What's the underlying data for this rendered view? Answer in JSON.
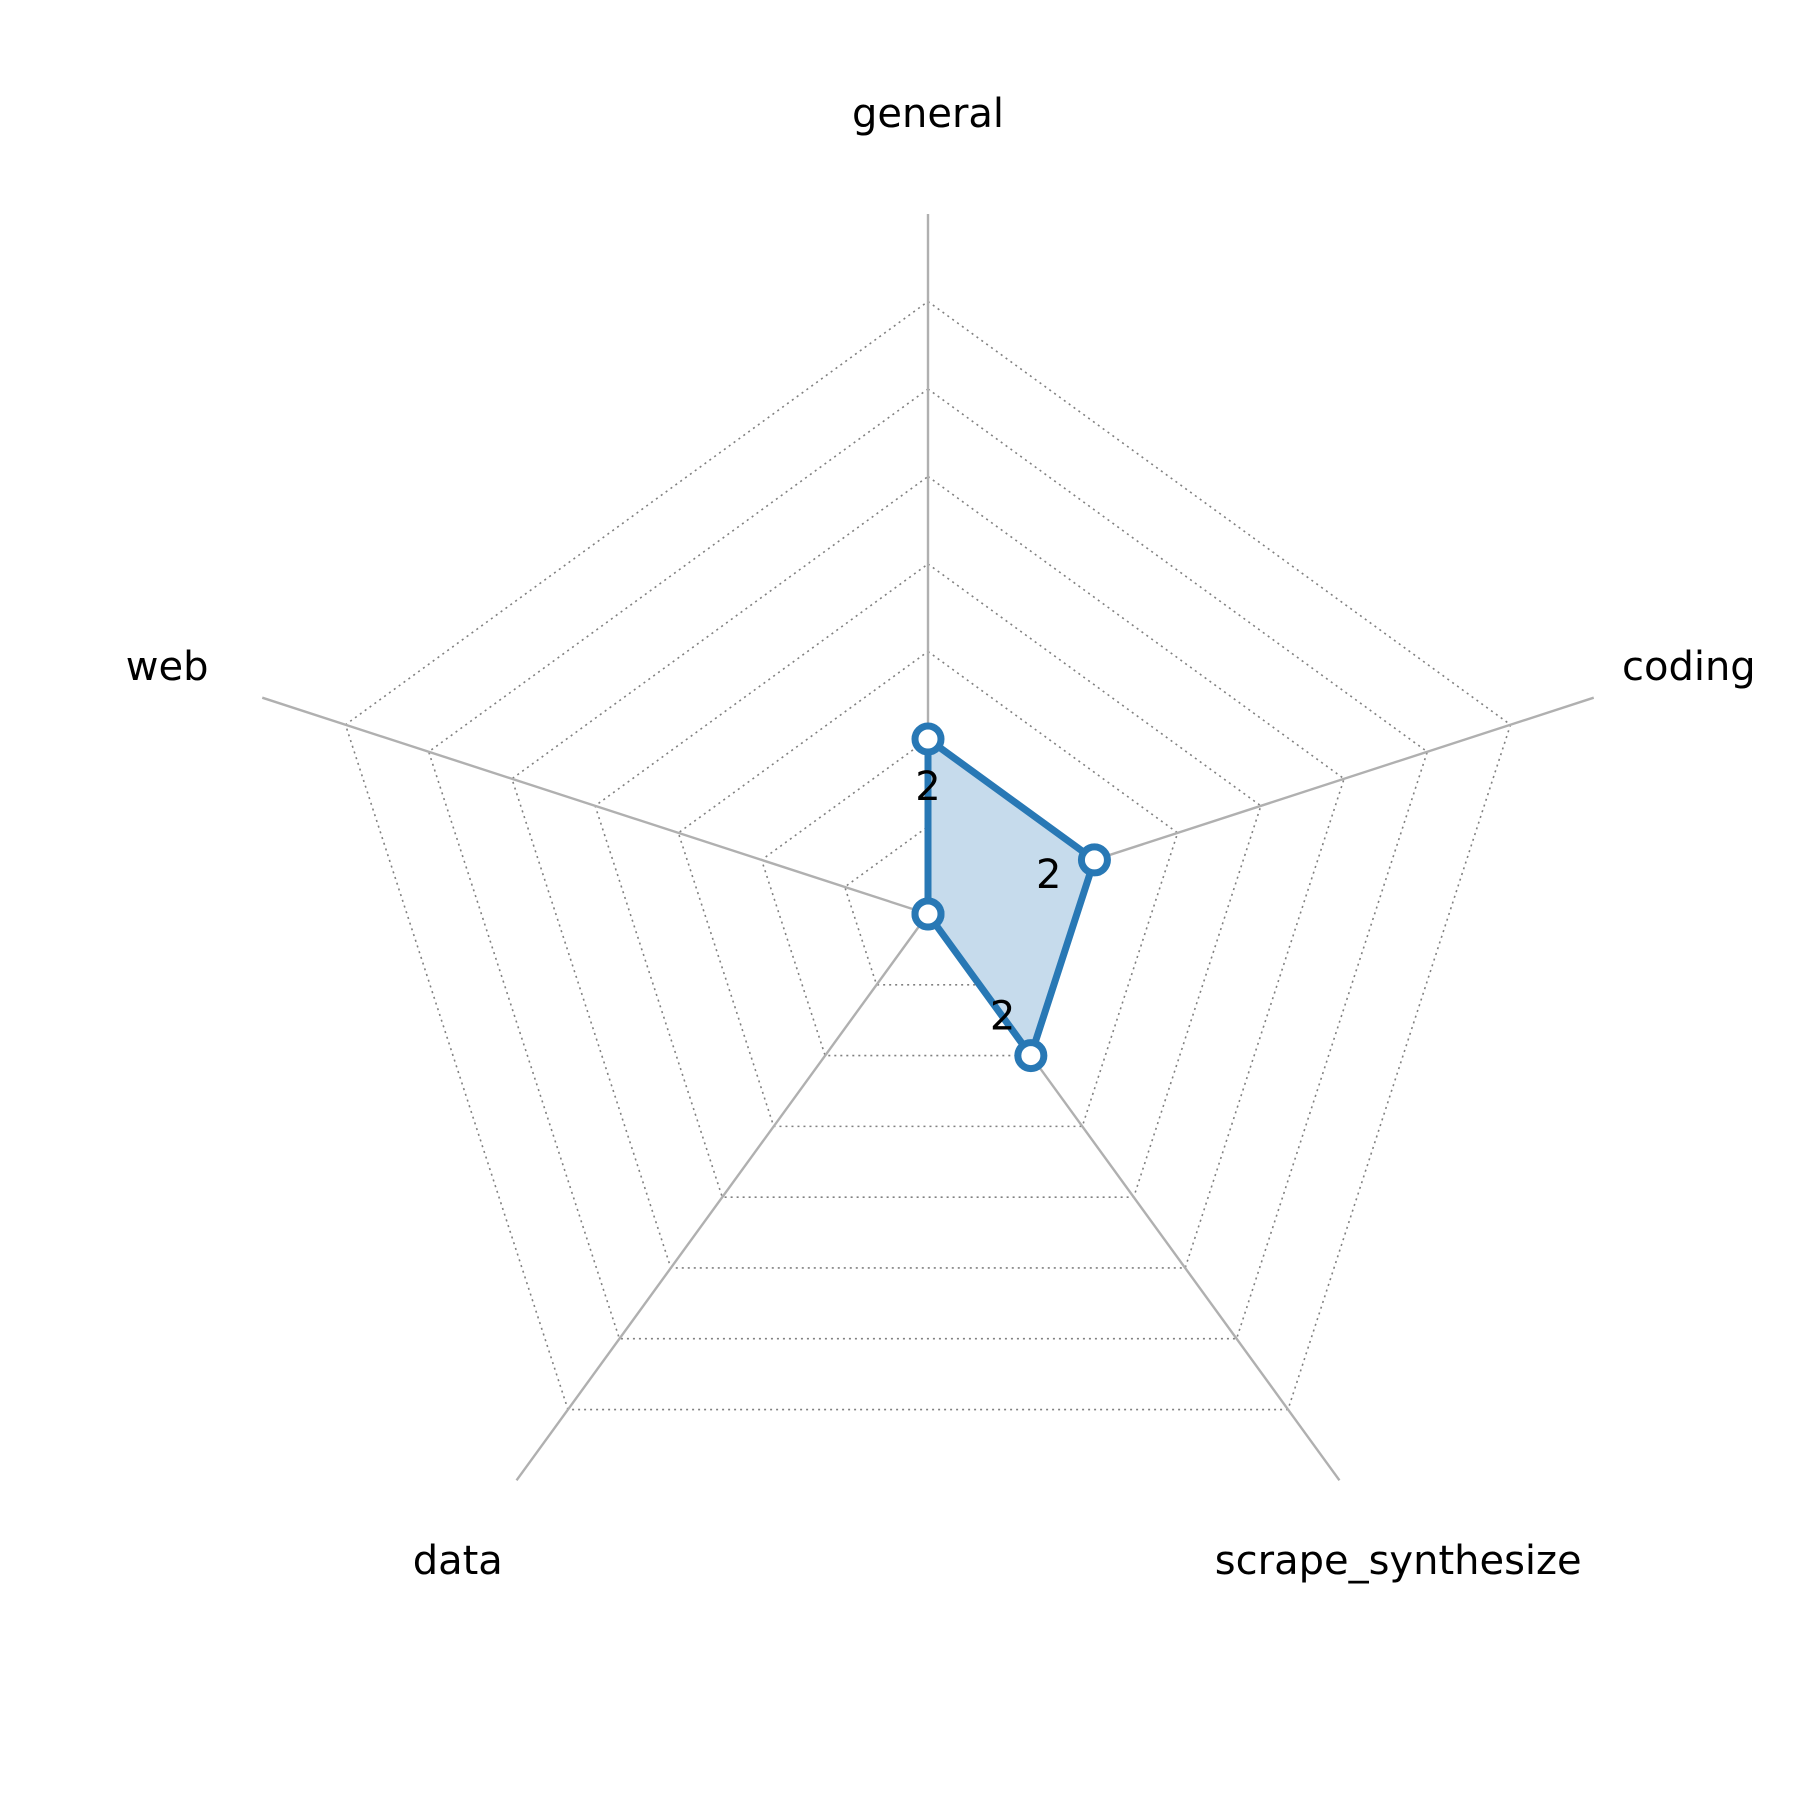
{
  "chart_data": {
    "type": "radar",
    "title": "",
    "categories": [
      "general",
      "coding",
      "scrape_synthesize",
      "data",
      "web"
    ],
    "series": [
      {
        "values": [
          2,
          2,
          2,
          0,
          0
        ]
      }
    ],
    "data_labels": [
      "2",
      "2",
      "2",
      "",
      ""
    ],
    "rmax": 8,
    "grid_levels": [
      1,
      2,
      3,
      4,
      5,
      6,
      7
    ],
    "grid": true,
    "grid_style": "dotted",
    "colors": {
      "series_line": "#2878b5",
      "series_fill": "#c6dbec",
      "marker_face": "#ffffff",
      "spoke": "#b0b0b0",
      "grid": "#808080"
    }
  }
}
